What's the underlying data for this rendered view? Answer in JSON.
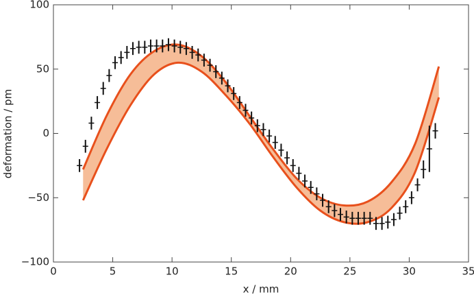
{
  "chart_data": {
    "type": "scatter",
    "xlabel": "x / mm",
    "ylabel": "deformation / pm",
    "xlim": [
      0,
      35
    ],
    "ylim": [
      -100,
      100
    ],
    "xticks": [
      0,
      5,
      10,
      15,
      20,
      25,
      30,
      35
    ],
    "yticks": [
      {
        "value": -100,
        "label": "−100"
      },
      {
        "value": -50,
        "label": "−50"
      },
      0,
      50,
      100
    ],
    "color": "#111111",
    "x": [
      2.2,
      2.7,
      3.2,
      3.7,
      4.2,
      4.7,
      5.2,
      5.7,
      6.2,
      6.7,
      7.2,
      7.7,
      8.2,
      8.7,
      9.2,
      9.7,
      10.2,
      10.7,
      11.2,
      11.7,
      12.2,
      12.7,
      13.2,
      13.7,
      14.2,
      14.7,
      15.2,
      15.7,
      16.2,
      16.7,
      17.2,
      17.7,
      18.2,
      18.7,
      19.2,
      19.7,
      20.2,
      20.7,
      21.2,
      21.7,
      22.2,
      22.7,
      23.2,
      23.7,
      24.2,
      24.7,
      25.2,
      25.7,
      26.2,
      26.7,
      27.2,
      27.7,
      28.2,
      28.7,
      29.2,
      29.7,
      30.2,
      30.7,
      31.2,
      31.7,
      32.2
    ],
    "values": [
      -25,
      -10,
      8,
      24,
      35,
      45,
      55,
      59,
      63,
      66,
      67,
      67,
      68,
      68,
      68,
      69,
      68,
      67,
      66,
      63,
      61,
      57,
      53,
      48,
      43,
      37,
      31,
      24,
      18,
      12,
      6,
      3,
      -2,
      -7,
      -13,
      -19,
      -25,
      -31,
      -37,
      -42,
      -47,
      -52,
      -57,
      -60,
      -63,
      -65,
      -66,
      -66,
      -66,
      -66,
      -70,
      -70,
      -69,
      -67,
      -62,
      -57,
      -50,
      -40,
      -28,
      -12,
      2
    ],
    "errors": [
      5,
      5,
      5,
      5,
      5,
      5,
      5,
      5,
      5,
      5,
      5,
      5,
      5,
      5,
      5,
      5,
      5,
      5,
      5,
      5,
      5,
      5,
      5,
      5,
      5,
      5,
      5,
      5,
      5,
      5,
      5,
      5,
      5,
      5,
      5,
      5,
      5,
      5,
      5,
      5,
      5,
      5,
      5,
      5,
      5,
      5,
      5,
      5,
      5,
      5,
      5,
      5,
      5,
      5,
      5,
      5,
      5,
      5,
      7,
      18,
      6
    ],
    "band": {
      "x": [
        2.5,
        4.5,
        6.5,
        8.5,
        10.5,
        12.5,
        14.5,
        16.5,
        18.5,
        20.5,
        22.5,
        24.5,
        26.5,
        28.5,
        30.5,
        32.5
      ],
      "upper": [
        -28,
        14,
        46,
        64,
        69,
        60,
        40,
        14,
        -12,
        -35,
        -50,
        -56,
        -53,
        -38,
        -8,
        52
      ],
      "lower": [
        -52,
        -12,
        22,
        46,
        55,
        48,
        30,
        8,
        -18,
        -42,
        -60,
        -69,
        -69,
        -58,
        -30,
        28
      ],
      "color": "#f6bd98",
      "edge_color": "#e8501c"
    }
  }
}
